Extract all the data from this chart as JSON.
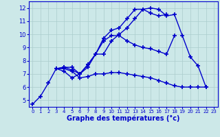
{
  "xlabel": "Graphe des températures (°c)",
  "background_color": "#cce8e8",
  "grid_color": "#aacccc",
  "line_color": "#0000cc",
  "line_width": 1.0,
  "marker": "+",
  "marker_size": 4,
  "marker_edge_width": 1.2,
  "xlim": [
    -0.5,
    23.5
  ],
  "ylim": [
    4.5,
    12.5
  ],
  "xticks": [
    0,
    1,
    2,
    3,
    4,
    5,
    6,
    7,
    8,
    9,
    10,
    11,
    12,
    13,
    14,
    15,
    16,
    17,
    18,
    19,
    20,
    21,
    22,
    23
  ],
  "yticks": [
    5,
    6,
    7,
    8,
    9,
    10,
    11,
    12
  ],
  "lines": [
    [
      [
        0,
        4.7
      ],
      [
        1,
        5.3
      ],
      [
        2,
        6.3
      ],
      [
        3,
        7.4
      ],
      [
        4,
        7.5
      ],
      [
        5,
        7.5
      ],
      [
        6,
        7.0
      ],
      [
        7,
        7.5
      ],
      [
        8,
        8.5
      ],
      [
        9,
        9.7
      ],
      [
        10,
        10.3
      ],
      [
        11,
        10.5
      ],
      [
        12,
        11.2
      ],
      [
        13,
        11.9
      ],
      [
        14,
        11.9
      ],
      [
        15,
        11.6
      ],
      [
        16,
        11.4
      ],
      [
        17,
        11.5
      ]
    ],
    [
      [
        3,
        7.4
      ],
      [
        4,
        7.4
      ],
      [
        5,
        7.2
      ],
      [
        6,
        6.7
      ],
      [
        7,
        6.8
      ],
      [
        8,
        7.0
      ],
      [
        9,
        7.0
      ],
      [
        10,
        7.1
      ],
      [
        11,
        7.1
      ],
      [
        12,
        7.0
      ],
      [
        13,
        6.9
      ],
      [
        14,
        6.8
      ],
      [
        15,
        6.7
      ],
      [
        16,
        6.5
      ],
      [
        17,
        6.3
      ],
      [
        18,
        6.1
      ],
      [
        19,
        6.0
      ],
      [
        20,
        6.0
      ],
      [
        21,
        6.0
      ],
      [
        22,
        6.0
      ]
    ],
    [
      [
        3,
        7.4
      ],
      [
        4,
        7.5
      ],
      [
        5,
        7.3
      ],
      [
        6,
        7.0
      ],
      [
        7,
        7.7
      ],
      [
        8,
        8.5
      ],
      [
        9,
        8.5
      ],
      [
        10,
        9.5
      ],
      [
        11,
        10.0
      ],
      [
        12,
        10.5
      ],
      [
        13,
        11.2
      ],
      [
        14,
        11.9
      ],
      [
        15,
        12.0
      ],
      [
        16,
        11.9
      ],
      [
        17,
        11.4
      ],
      [
        18,
        11.5
      ],
      [
        19,
        9.9
      ],
      [
        20,
        8.3
      ],
      [
        21,
        7.6
      ],
      [
        22,
        6.0
      ]
    ],
    [
      [
        3,
        7.4
      ],
      [
        4,
        7.2
      ],
      [
        5,
        6.7
      ],
      [
        6,
        7.0
      ],
      [
        7,
        7.7
      ],
      [
        8,
        8.5
      ],
      [
        9,
        9.5
      ],
      [
        10,
        9.9
      ],
      [
        11,
        9.9
      ],
      [
        12,
        9.5
      ],
      [
        13,
        9.2
      ],
      [
        14,
        9.0
      ],
      [
        15,
        8.9
      ],
      [
        16,
        8.7
      ],
      [
        17,
        8.5
      ],
      [
        18,
        9.9
      ]
    ]
  ]
}
